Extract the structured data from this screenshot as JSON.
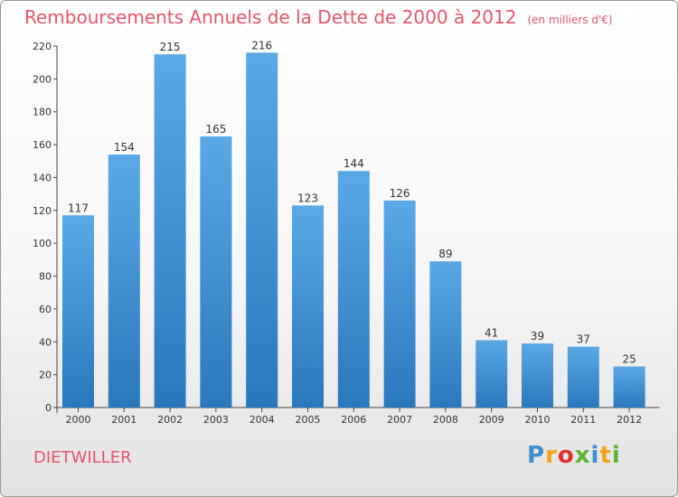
{
  "header": {
    "title": "Remboursements Annuels de la Dette de 2000 à 2012",
    "unit": "(en milliers d'€)"
  },
  "footer": {
    "commune": "DIETWILLER",
    "logo_letters": [
      "P",
      "r",
      "o",
      "x",
      "i",
      "t",
      "i"
    ],
    "logo_colors": [
      "#3f8fd2",
      "#f2a51a",
      "#e0312d",
      "#5ab534",
      "#3f8fd2",
      "#f2a51a",
      "#5ab534"
    ]
  },
  "chart_data": {
    "type": "bar",
    "title": "Remboursements Annuels de la Dette de 2000 à 2012",
    "categories": [
      "2000",
      "2001",
      "2002",
      "2003",
      "2004",
      "2005",
      "2006",
      "2007",
      "2008",
      "2009",
      "2010",
      "2011",
      "2012"
    ],
    "values": [
      117,
      154,
      215,
      165,
      216,
      123,
      144,
      126,
      89,
      41,
      39,
      37,
      25
    ],
    "ylim": [
      0,
      220
    ],
    "yticks": [
      0,
      20,
      40,
      60,
      80,
      100,
      120,
      140,
      160,
      180,
      200,
      220
    ],
    "grid": false,
    "bar_color_top": "#5aa9e6",
    "bar_color_bottom": "#2a78bc",
    "text_color": "#e8556a"
  }
}
